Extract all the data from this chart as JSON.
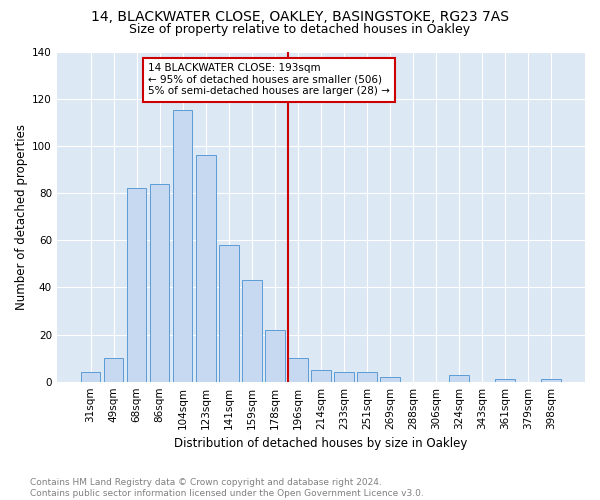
{
  "title1": "14, BLACKWATER CLOSE, OAKLEY, BASINGSTOKE, RG23 7AS",
  "title2": "Size of property relative to detached houses in Oakley",
  "xlabel": "Distribution of detached houses by size in Oakley",
  "ylabel": "Number of detached properties",
  "footer1": "Contains HM Land Registry data © Crown copyright and database right 2024.",
  "footer2": "Contains public sector information licensed under the Open Government Licence v3.0.",
  "annotation_line1": "14 BLACKWATER CLOSE: 193sqm",
  "annotation_line2": "← 95% of detached houses are smaller (506)",
  "annotation_line3": "5% of semi-detached houses are larger (28) →",
  "bar_labels": [
    "31sqm",
    "49sqm",
    "68sqm",
    "86sqm",
    "104sqm",
    "123sqm",
    "141sqm",
    "159sqm",
    "178sqm",
    "196sqm",
    "214sqm",
    "233sqm",
    "251sqm",
    "269sqm",
    "288sqm",
    "306sqm",
    "324sqm",
    "343sqm",
    "361sqm",
    "379sqm",
    "398sqm"
  ],
  "bar_values": [
    4,
    10,
    82,
    84,
    115,
    96,
    58,
    43,
    22,
    10,
    5,
    4,
    4,
    2,
    0,
    0,
    3,
    0,
    1,
    0,
    1
  ],
  "bar_color": "#c6d9f0",
  "bar_edge_color": "#5b9bd5",
  "background_color": "#dde8f5",
  "vline_color": "#cc0000",
  "annotation_box_color": "#cc0000",
  "ylim": [
    0,
    140
  ],
  "yticks": [
    0,
    20,
    40,
    60,
    80,
    100,
    120,
    140
  ],
  "vline_bar_index": 9,
  "title1_fontsize": 10,
  "title2_fontsize": 9,
  "xlabel_fontsize": 8.5,
  "ylabel_fontsize": 8.5,
  "annotation_fontsize": 7.5,
  "tick_fontsize": 7.5,
  "footer_fontsize": 6.5
}
